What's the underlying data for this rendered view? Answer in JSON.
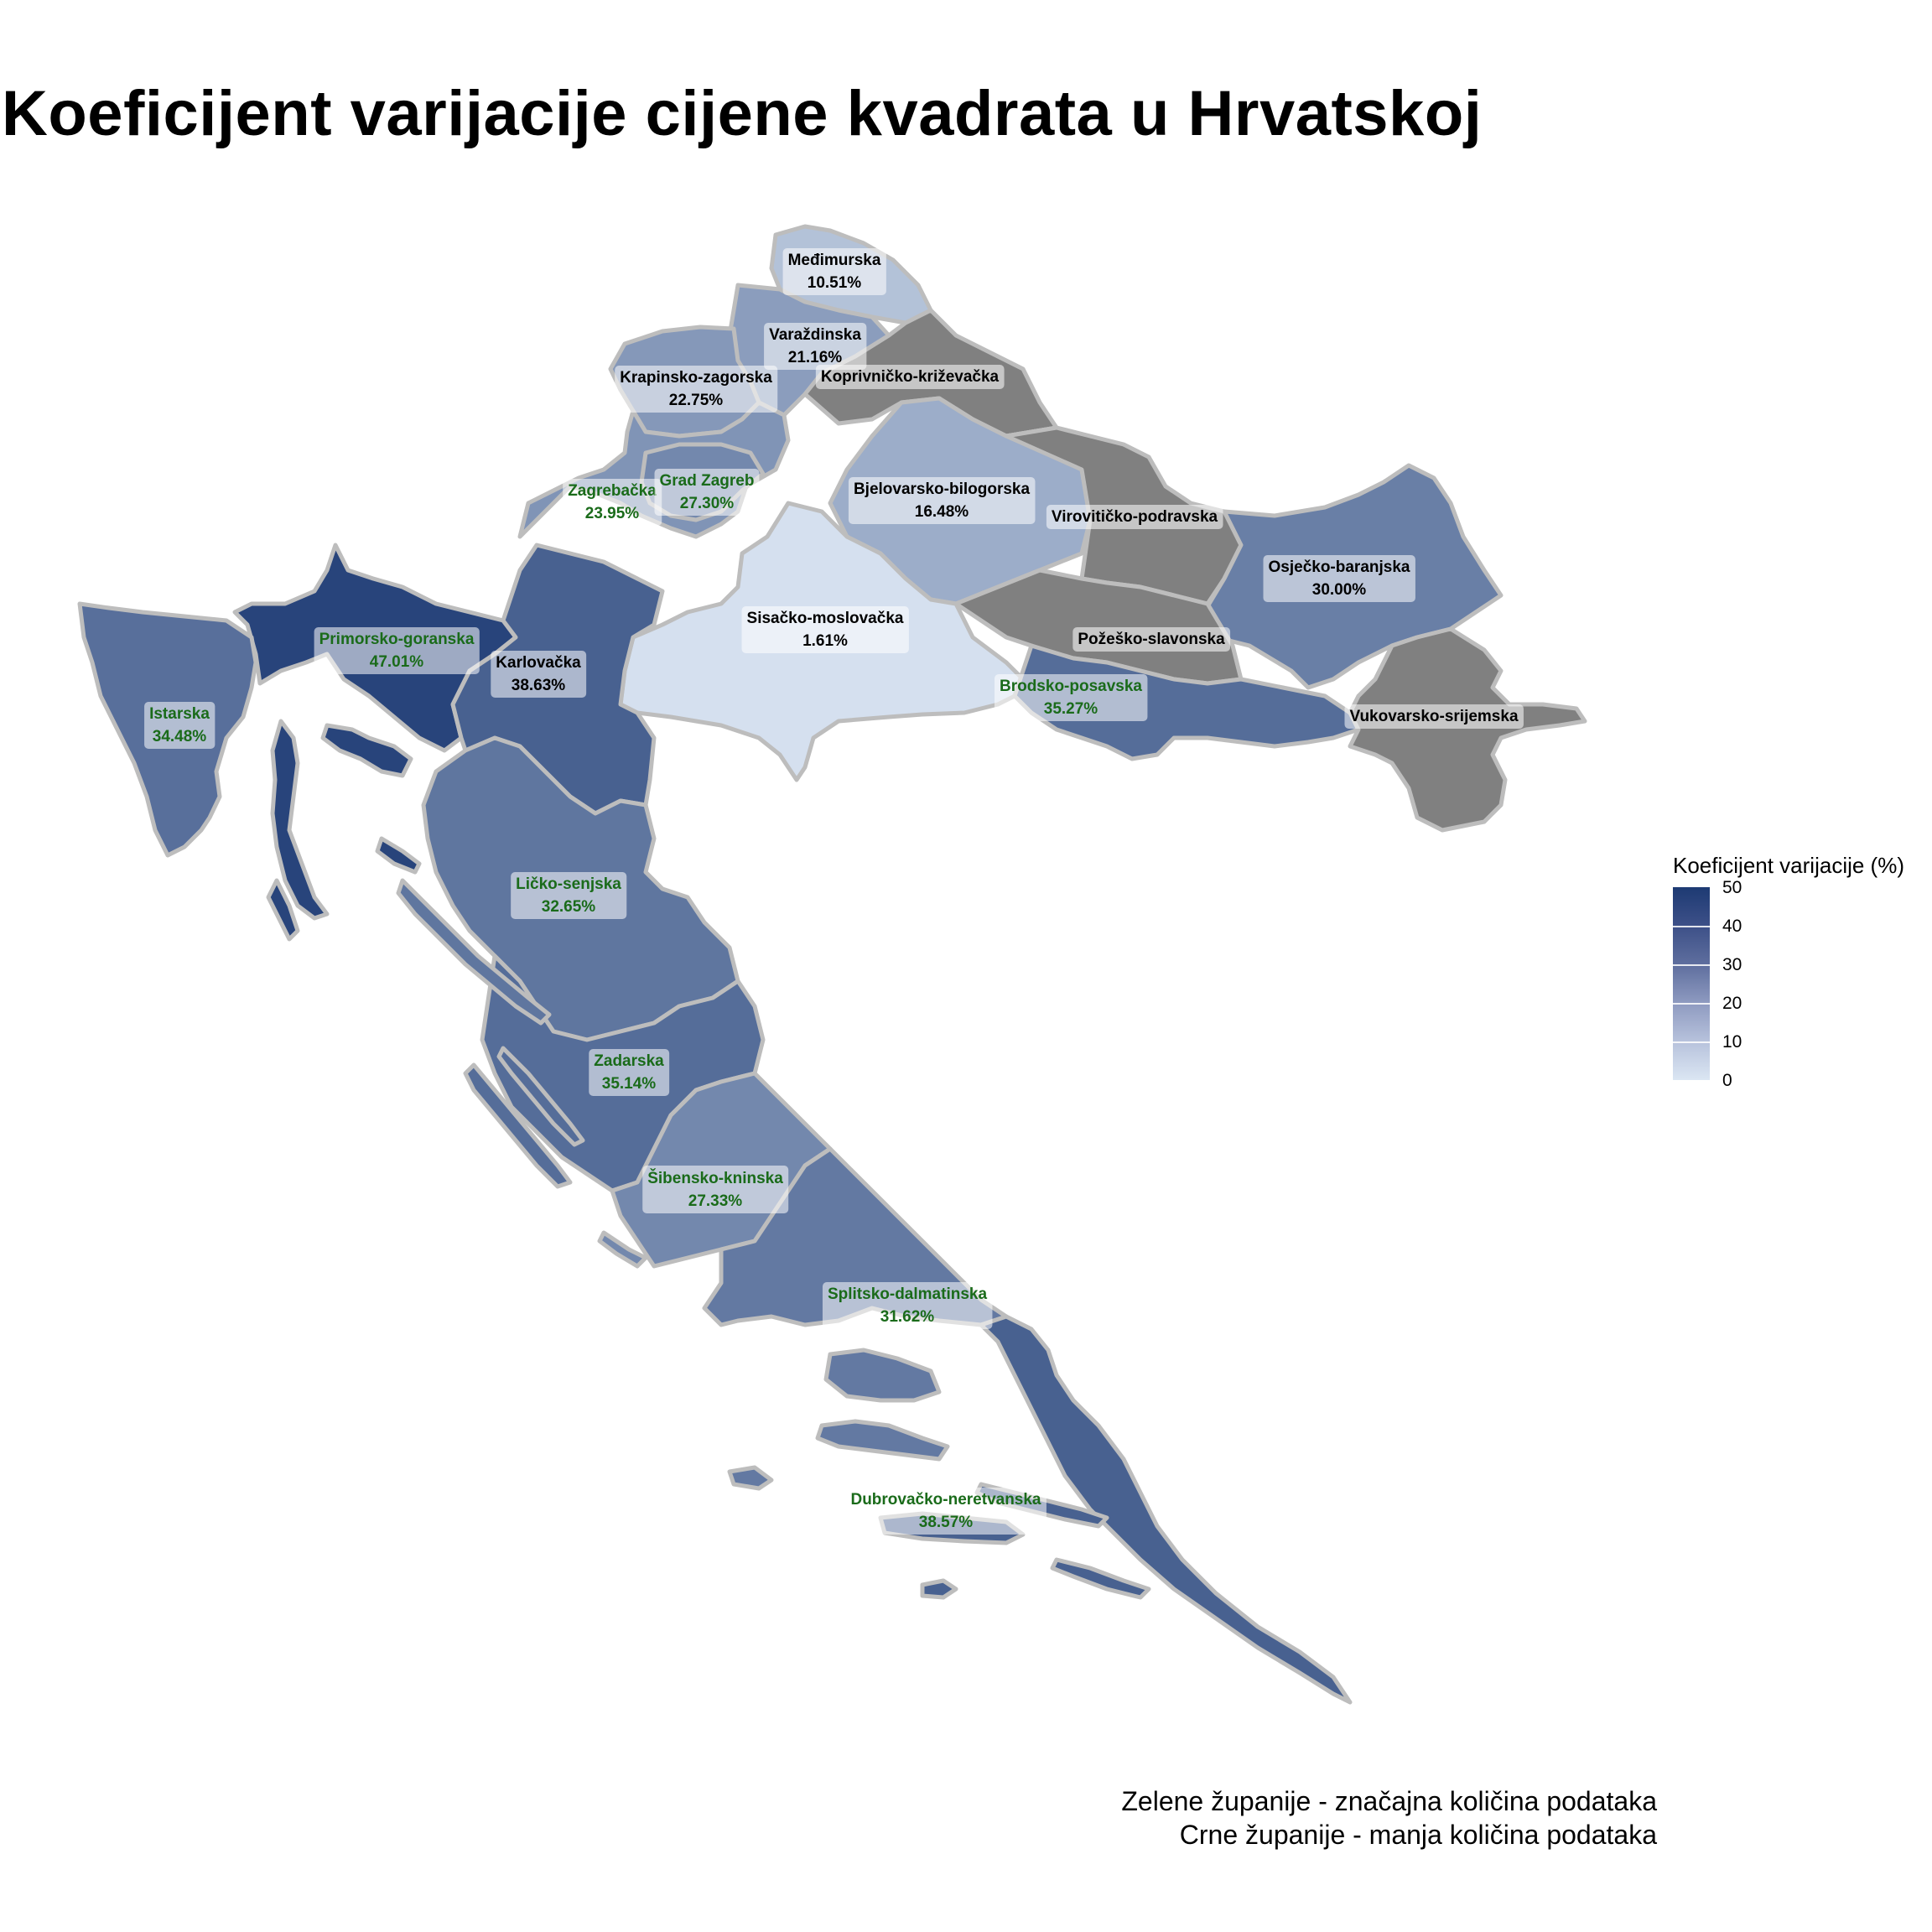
{
  "title": "Koeficijent varijacije cijene kvadrata u Hrvatskoj",
  "legend": {
    "title": "Koeficijent varijacije (%)",
    "ticks": [
      "50",
      "40",
      "30",
      "20",
      "10",
      "0"
    ],
    "range": [
      0,
      50
    ],
    "color_low": "#dbe6f3",
    "color_high": "#1d3a73",
    "no_data_color": "#808080"
  },
  "notes": [
    "Zelene županije - značajna količina podataka",
    "Crne županije - manja količina podataka"
  ],
  "label_colors": {
    "green": "#1a6b1a",
    "black": "#000000"
  },
  "counties": [
    {
      "name": "Međimurska",
      "value_text": "10.51%",
      "value": 10.51,
      "group": "black"
    },
    {
      "name": "Varaždinska",
      "value_text": "21.16%",
      "value": 21.16,
      "group": "black"
    },
    {
      "name": "Krapinsko-zagorska",
      "value_text": "22.75%",
      "value": 22.75,
      "group": "black"
    },
    {
      "name": "Koprivničko-križevačka",
      "value_text": "",
      "value": null,
      "group": "black"
    },
    {
      "name": "Zagrebačka",
      "value_text": "23.95%",
      "value": 23.95,
      "group": "green"
    },
    {
      "name": "Grad Zagreb",
      "value_text": "27.30%",
      "value": 27.3,
      "group": "green"
    },
    {
      "name": "Bjelovarsko-bilogorska",
      "value_text": "16.48%",
      "value": 16.48,
      "group": "black"
    },
    {
      "name": "Virovitičko-podravska",
      "value_text": "",
      "value": null,
      "group": "black"
    },
    {
      "name": "Osječko-baranjska",
      "value_text": "30.00%",
      "value": 30.0,
      "group": "black"
    },
    {
      "name": "Sisačko-moslovačka",
      "value_text": "1.61%",
      "value": 1.61,
      "group": "black"
    },
    {
      "name": "Primorsko-goranska",
      "value_text": "47.01%",
      "value": 47.01,
      "group": "green"
    },
    {
      "name": "Karlovačka",
      "value_text": "38.63%",
      "value": 38.63,
      "group": "black"
    },
    {
      "name": "Požeško-slavonska",
      "value_text": "",
      "value": null,
      "group": "black"
    },
    {
      "name": "Brodsko-posavska",
      "value_text": "35.27%",
      "value": 35.27,
      "group": "green"
    },
    {
      "name": "Vukovarsko-srijemska",
      "value_text": "",
      "value": null,
      "group": "black"
    },
    {
      "name": "Istarska",
      "value_text": "34.48%",
      "value": 34.48,
      "group": "green"
    },
    {
      "name": "Ličko-senjska",
      "value_text": "32.65%",
      "value": 32.65,
      "group": "green"
    },
    {
      "name": "Zadarska",
      "value_text": "35.14%",
      "value": 35.14,
      "group": "green"
    },
    {
      "name": "Šibensko-kninska",
      "value_text": "27.33%",
      "value": 27.33,
      "group": "green"
    },
    {
      "name": "Splitsko-dalmatinska",
      "value_text": "31.62%",
      "value": 31.62,
      "group": "green"
    },
    {
      "name": "Dubrovačko-neretvanska",
      "value_text": "38.57%",
      "value": 38.57,
      "group": "green"
    }
  ]
}
